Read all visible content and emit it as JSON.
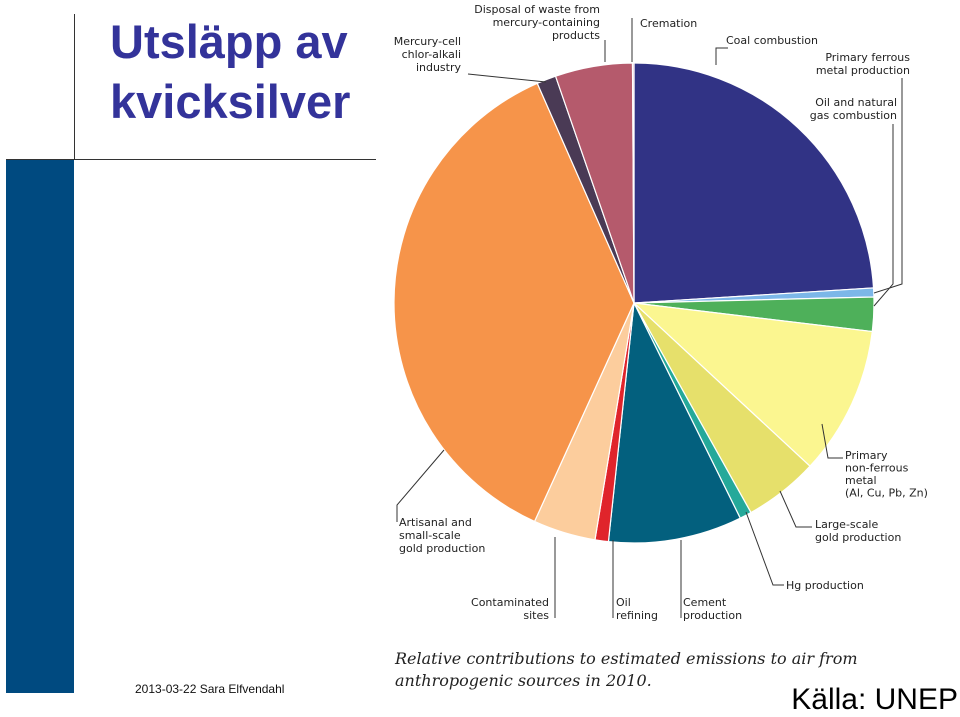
{
  "slide": {
    "title_line1": "Utsläpp av",
    "title_line2": "kvicksilver",
    "footer": "2013-03-22 Sara Elfvendahl",
    "source": "Källa: UNEP"
  },
  "chart_data": {
    "type": "pie",
    "unit": "%",
    "caption_line1": "Relative contributions to estimated emissions to air from",
    "caption_line2": "anthropogenic sources in 2010.",
    "slices": [
      {
        "label": "Coal combustion",
        "value": 24.0,
        "color": "#313385"
      },
      {
        "label": "Primary ferrous metal production",
        "value": 0.6,
        "color": "#7cb7e8"
      },
      {
        "label": "Oil and natural gas combustion",
        "value": 2.3,
        "color": "#4eb05a"
      },
      {
        "label": "Primary non-ferrous metal (Al, Cu, Pb, Zn)",
        "value": 10.0,
        "color": "#fbf690"
      },
      {
        "label": "Large-scale gold production",
        "value": 5.0,
        "color": "#e6e06b"
      },
      {
        "label": "Hg production",
        "value": 0.8,
        "color": "#25a99a"
      },
      {
        "label": "Cement production",
        "value": 9.0,
        "color": "#03607e"
      },
      {
        "label": "Oil refining",
        "value": 0.9,
        "color": "#e0242b"
      },
      {
        "label": "Contaminated sites",
        "value": 4.2,
        "color": "#fccd9d"
      },
      {
        "label": "Artisanal and small-scale gold production",
        "value": 36.6,
        "color": "#f6944a"
      },
      {
        "label": "Mercury-cell chlor-alkali industry",
        "value": 1.3,
        "color": "#4a3a55"
      },
      {
        "label": "Disposal of waste from mercury-containing products",
        "value": 5.2,
        "color": "#b55a6c"
      },
      {
        "label": "Cremation",
        "value": 0.1,
        "color": "#d9a0b8"
      }
    ],
    "label_lines": [
      [
        "Coal combustion"
      ],
      [
        "Primary ferrous",
        "metal production"
      ],
      [
        "Oil and natural",
        "gas combustion"
      ],
      [
        "Primary",
        "non-ferrous",
        "metal",
        "(Al, Cu, Pb, Zn)"
      ],
      [
        "Large-scale",
        "gold production"
      ],
      [
        "Hg production"
      ],
      [
        "Cement",
        "production"
      ],
      [
        "Oil",
        "refining"
      ],
      [
        "Contaminated",
        "sites"
      ],
      [
        "Artisanal and",
        "small-scale",
        "gold production"
      ],
      [
        "Mercury-cell",
        "chlor-alkali",
        "industry"
      ],
      [
        "Disposal of waste from",
        "mercury-containing",
        "products"
      ],
      [
        "Cremation"
      ]
    ]
  }
}
